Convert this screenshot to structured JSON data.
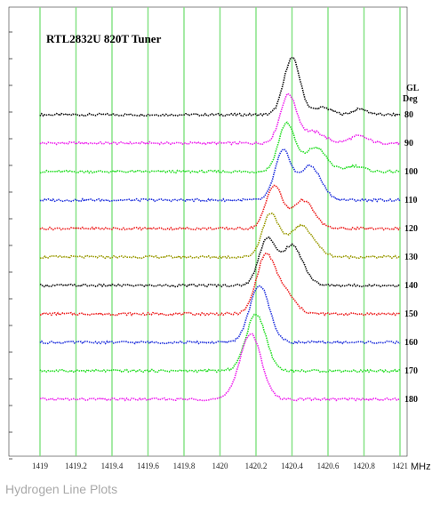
{
  "caption": "Hydrogen Line Plots",
  "chart_data": {
    "type": "line",
    "title": "RTL2832U 820T Tuner",
    "xlabel": "MHz",
    "xlim": [
      1419,
      1421
    ],
    "x_ticks": [
      1419,
      1419.2,
      1419.4,
      1419.6,
      1419.8,
      1420,
      1420.2,
      1420.4,
      1420.6,
      1420.8,
      1421
    ],
    "x_tick_labels": [
      "1419",
      "1419.2",
      "1419.4",
      "1419.6",
      "1419.8",
      "1420",
      "1420.2",
      "1420.4",
      "1420.6",
      "1420.8",
      "1421"
    ],
    "grid_x": true,
    "legend_header": [
      "GL",
      "Deg"
    ],
    "series": [
      {
        "name": "80",
        "color": "#111111",
        "baseline": 8.0,
        "peaks": [
          {
            "x": 1420.4,
            "height": 2.0,
            "width": 0.045
          },
          {
            "x": 1420.57,
            "height": 0.25,
            "width": 0.05
          },
          {
            "x": 1420.78,
            "height": 0.2,
            "width": 0.04
          }
        ]
      },
      {
        "name": "90",
        "color": "#ee22ee",
        "baseline": 7.0,
        "peaks": [
          {
            "x": 1420.38,
            "height": 1.7,
            "width": 0.045
          },
          {
            "x": 1420.52,
            "height": 0.4,
            "width": 0.06
          },
          {
            "x": 1420.77,
            "height": 0.25,
            "width": 0.05
          }
        ]
      },
      {
        "name": "100",
        "color": "#22dd22",
        "baseline": 6.0,
        "peaks": [
          {
            "x": 1420.37,
            "height": 1.7,
            "width": 0.045
          },
          {
            "x": 1420.53,
            "height": 0.85,
            "width": 0.06
          },
          {
            "x": 1420.75,
            "height": 0.2,
            "width": 0.05
          }
        ]
      },
      {
        "name": "110",
        "color": "#2233dd",
        "baseline": 5.0,
        "peaks": [
          {
            "x": 1420.35,
            "height": 1.7,
            "width": 0.045
          },
          {
            "x": 1420.5,
            "height": 1.2,
            "width": 0.06
          }
        ]
      },
      {
        "name": "120",
        "color": "#ee2222",
        "baseline": 4.0,
        "peaks": [
          {
            "x": 1420.3,
            "height": 1.5,
            "width": 0.045
          },
          {
            "x": 1420.46,
            "height": 1.0,
            "width": 0.06
          }
        ]
      },
      {
        "name": "130",
        "color": "#999900",
        "baseline": 3.0,
        "peaks": [
          {
            "x": 1420.28,
            "height": 1.5,
            "width": 0.045
          },
          {
            "x": 1420.45,
            "height": 1.1,
            "width": 0.07
          }
        ]
      },
      {
        "name": "140",
        "color": "#111111",
        "baseline": 2.0,
        "peaks": [
          {
            "x": 1420.26,
            "height": 1.6,
            "width": 0.045
          },
          {
            "x": 1420.4,
            "height": 1.4,
            "width": 0.06
          }
        ]
      },
      {
        "name": "150",
        "color": "#ee2222",
        "baseline": 1.0,
        "peaks": [
          {
            "x": 1420.25,
            "height": 1.9,
            "width": 0.05
          },
          {
            "x": 1420.35,
            "height": 0.8,
            "width": 0.06
          }
        ]
      },
      {
        "name": "160",
        "color": "#2233dd",
        "baseline": 0.0,
        "peaks": [
          {
            "x": 1420.22,
            "height": 2.0,
            "width": 0.055
          }
        ]
      },
      {
        "name": "170",
        "color": "#22dd22",
        "baseline": -1.0,
        "peaks": [
          {
            "x": 1420.2,
            "height": 2.0,
            "width": 0.055
          }
        ]
      },
      {
        "name": "180",
        "color": "#ee22ee",
        "baseline": -2.0,
        "peaks": [
          {
            "x": 1420.17,
            "height": 2.3,
            "width": 0.06
          }
        ]
      }
    ]
  }
}
